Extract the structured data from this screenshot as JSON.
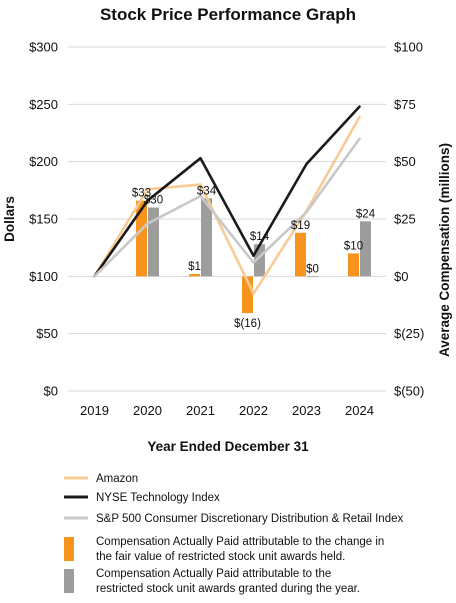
{
  "chart_data": {
    "type": "bar",
    "title": "Stock Price Performance Graph",
    "xlabel": "Year Ended December 31",
    "ylabel": "Dollars",
    "y2label": "Average Compensation (millions)",
    "categories": [
      "2019",
      "2020",
      "2021",
      "2022",
      "2023",
      "2024"
    ],
    "ylim": [
      0,
      300
    ],
    "y2lim": [
      -50,
      100
    ],
    "yticks": [
      {
        "value": 0,
        "label": "$0"
      },
      {
        "value": 50,
        "label": "$50"
      },
      {
        "value": 100,
        "label": "$100"
      },
      {
        "value": 150,
        "label": "$150"
      },
      {
        "value": 200,
        "label": "$200"
      },
      {
        "value": 250,
        "label": "$250"
      },
      {
        "value": 300,
        "label": "$300"
      }
    ],
    "y2ticks": [
      {
        "value": -50,
        "label": "$(50)"
      },
      {
        "value": -25,
        "label": "$(25)"
      },
      {
        "value": 0,
        "label": "$0"
      },
      {
        "value": 25,
        "label": "$25"
      },
      {
        "value": 50,
        "label": "$50"
      },
      {
        "value": 75,
        "label": "$75"
      },
      {
        "value": 100,
        "label": "$100"
      }
    ],
    "grid": true,
    "legend_position": "bottom",
    "lines": [
      {
        "name": "Amazon",
        "color": "#f8cb94",
        "values": [
          100,
          176,
          180,
          85,
          157,
          239
        ]
      },
      {
        "name": "NYSE Technology Index",
        "color": "#1a1a1a",
        "values": [
          100,
          166,
          203,
          118,
          198,
          248
        ]
      },
      {
        "name": "S&P 500 Consumer Discretionary Distribution & Retail Index",
        "color": "#c8c8c8",
        "values": [
          100,
          146,
          170,
          112,
          156,
          220
        ]
      }
    ],
    "bars": [
      {
        "name": "Compensation Actually Paid attributable to the change in the fair value of restricted stock unit awards held.",
        "color": "#f7941d",
        "values": [
          null,
          33,
          1,
          -16,
          19,
          10
        ],
        "labels": [
          "",
          "$33",
          "$1",
          "$(16)",
          "$19",
          "$10"
        ]
      },
      {
        "name": "Compensation Actually Paid attributable to the restricted stock unit awards granted during the year.",
        "color": "#9d9d9d",
        "values": [
          null,
          30,
          34,
          14,
          0,
          24
        ],
        "labels": [
          "",
          "$30",
          "$34",
          "$14",
          "$0",
          "$24"
        ]
      }
    ]
  }
}
